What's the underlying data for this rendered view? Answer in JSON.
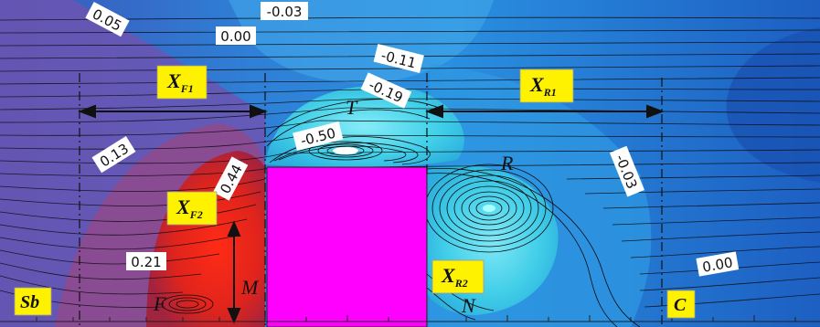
{
  "contour_labels": [
    "0.05",
    "0.00",
    "-0.03",
    "-0.11",
    "-0.19",
    "-0.50",
    "0.13",
    "0.44",
    "0.21",
    "-0.03",
    "0.00"
  ],
  "region_labels": {
    "xf1_main": "X",
    "xf1_sub": "F1",
    "xr1_main": "X",
    "xr1_sub": "R1",
    "xf2_main": "X",
    "xf2_sub": "F2",
    "xr2_main": "X",
    "xr2_sub": "R2",
    "sb": "Sb",
    "c": "C"
  },
  "point_labels": {
    "t": "T",
    "r": "R",
    "f": "F",
    "m": "M",
    "n": "N"
  },
  "colors": {
    "obstacle": "#ff00ff",
    "label_box": "#fff200",
    "background_blue": "#1e63c8",
    "red_zone": "#d91f1f",
    "purple_zone": "#7a4c9e",
    "recirc_cyan": "#4fe3ec"
  }
}
